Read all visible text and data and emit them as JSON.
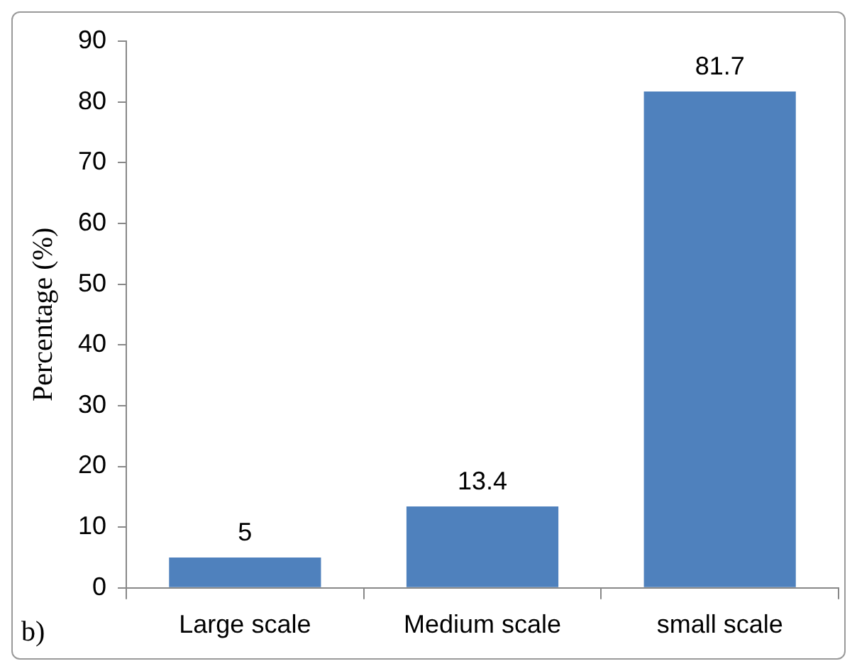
{
  "chart_data": {
    "type": "bar",
    "ylabel": "Percentage (%)",
    "categories": [
      "Large scale",
      "Medium scale",
      "small scale"
    ],
    "values": [
      5,
      13.4,
      81.7
    ],
    "color": "#4f81bd",
    "ylim": [
      0,
      90
    ],
    "yticks": [
      0,
      10,
      20,
      30,
      40,
      50,
      60,
      70,
      80,
      90
    ],
    "data_labels": true,
    "legend": false,
    "annotations": [
      "b)"
    ]
  }
}
